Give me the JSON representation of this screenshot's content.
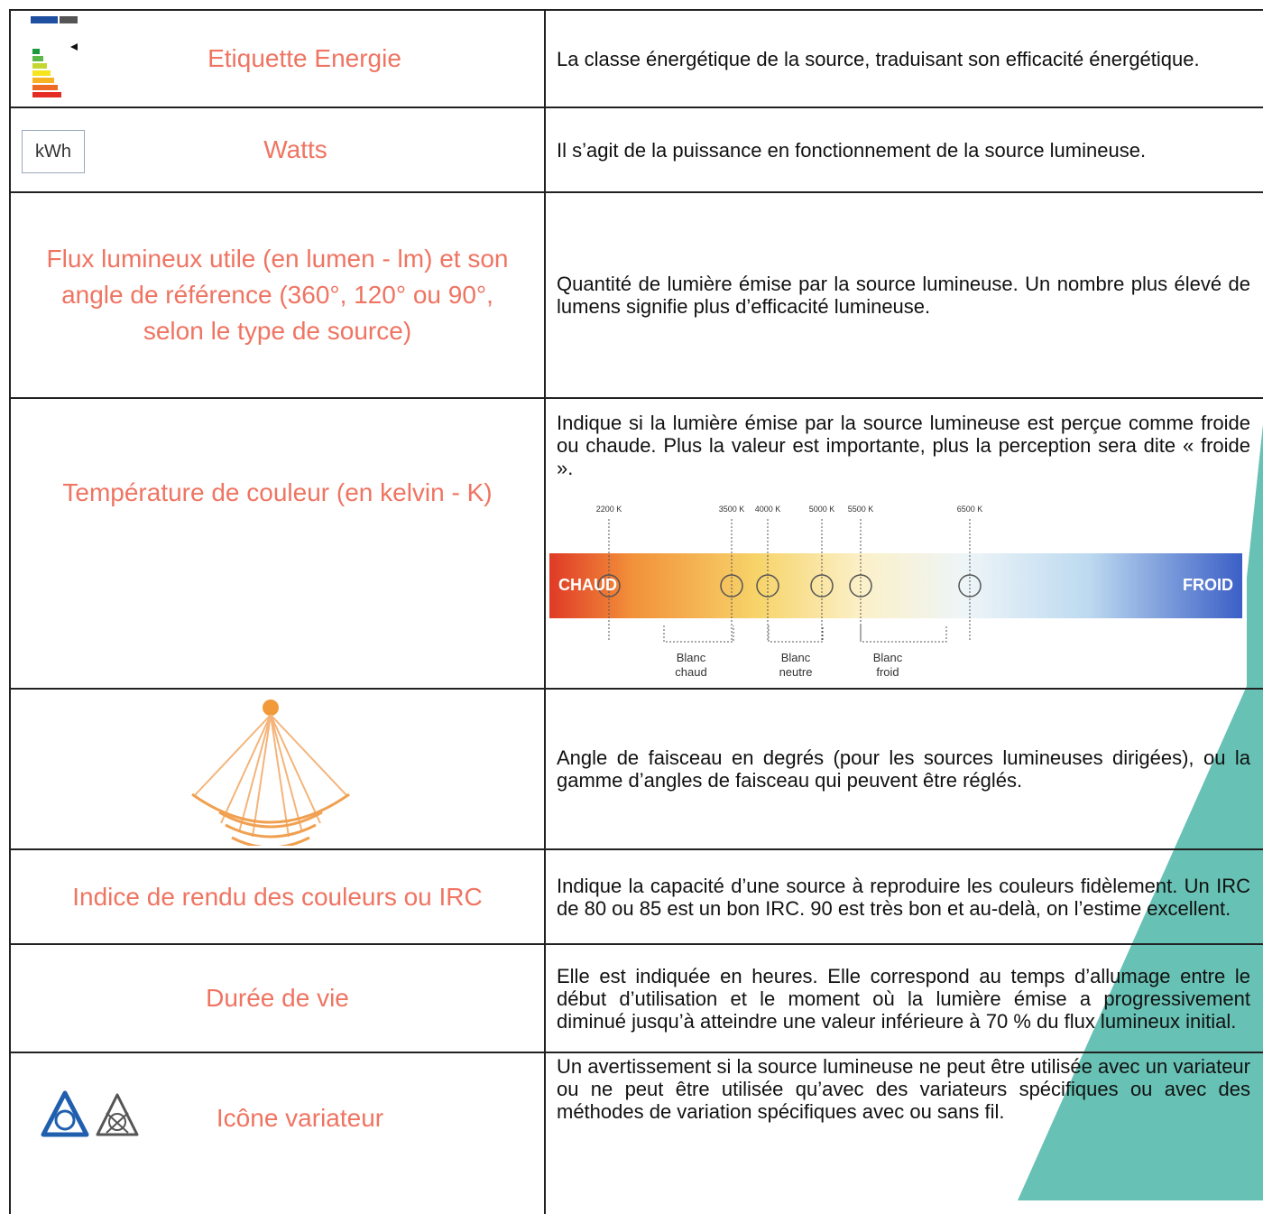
{
  "rows": [
    {
      "label": "Etiquette Energie",
      "description": "La classe énergétique de la source, traduisant son efficacité énergétique."
    },
    {
      "label": "Watts",
      "description": "Il s’agit de la puissance en fonctionnement de la source lumineuse."
    },
    {
      "label": "Flux lumineux utile (en lumen - lm) et son angle de référence (360°, 120° ou 90°, selon le type de source)",
      "description": "Quantité de lumière émise par la source lumineuse. Un nombre plus élevé de lumens signifie plus d’efficacité lumineuse."
    },
    {
      "label": "Température de couleur (en kelvin - K)",
      "description": "Indique si la lumière émise par la source lumineuse est perçue comme froide ou chaude. Plus la valeur est importante, plus la perception sera dite « froide »."
    },
    {
      "label": "",
      "description": "Angle de faisceau en degrés (pour les sources lumineuses dirigées), ou la gamme d’angles de faisceau qui peuvent être réglés."
    },
    {
      "label": "Indice de rendu des couleurs ou IRC",
      "description": "Indique la capacité d’une source à reproduire les couleurs fidèlement. Un IRC de 80 ou 85 est un bon IRC. 90 est très bon et au-delà, on l’estime excellent."
    },
    {
      "label": "Durée de vie",
      "description": "Elle est indiquée en heures. Elle correspond au temps d’allumage entre le début d’utilisation et le moment où la lumière émise a progressivement diminué jusqu’à atteindre une valeur inférieure à 70 % du flux lumineux initial."
    },
    {
      "label": "Icône variateur",
      "description": "Un avertissement si la source lumineuse ne peut être utilisée avec un variateur ou ne peut être utilisée qu’avec des variateurs spécifiques ou avec des méthodes de variation spécifiques avec ou sans fil."
    }
  ],
  "watts_icon": "kWh",
  "color_scale": {
    "temperatures": [
      "2200 K",
      "3500 K",
      "4000 K",
      "5000 K",
      "5500 K",
      "6500 K"
    ],
    "warm": "CHAUD",
    "cold": "FROID",
    "groups": [
      "Blanc chaud",
      "Blanc neutre",
      "Blanc froid"
    ]
  }
}
